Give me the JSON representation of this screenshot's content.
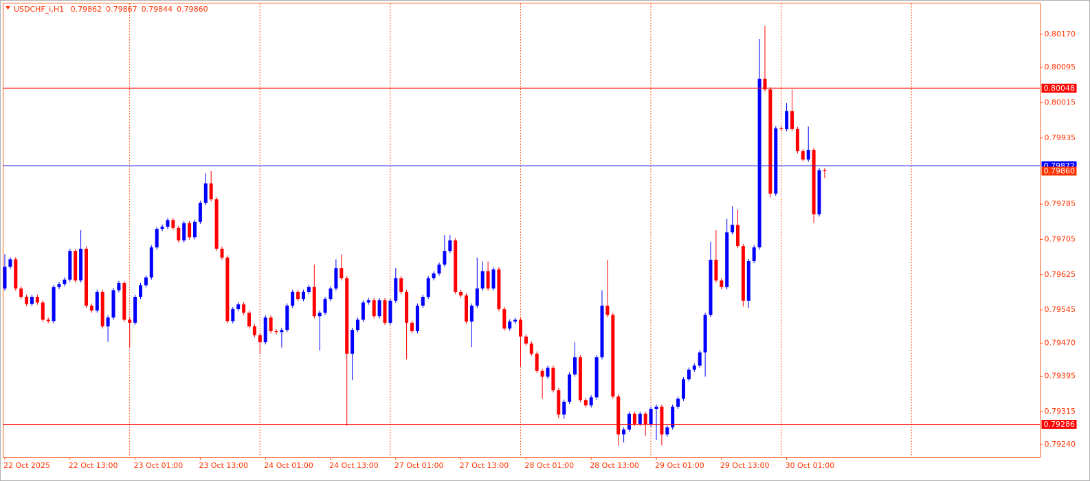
{
  "chart_data": {
    "type": "candlestick",
    "symbol": "USDCHF_i,H1",
    "header_values": [
      "0.79862",
      "0.79867",
      "0.79844",
      "0.79860"
    ],
    "up_color": "#0000ff",
    "down_color": "#ff0000",
    "categories": [
      "22 Oct 2025",
      null,
      null,
      null,
      null,
      null,
      null,
      null,
      null,
      null,
      null,
      null,
      "22 Oct 13:00",
      null,
      null,
      null,
      null,
      null,
      null,
      null,
      null,
      null,
      null,
      null,
      "23 Oct 01:00",
      null,
      null,
      null,
      null,
      null,
      null,
      null,
      null,
      null,
      null,
      null,
      "23 Oct 13:00",
      null,
      null,
      null,
      null,
      null,
      null,
      null,
      null,
      null,
      null,
      null,
      "24 Oct 01:00",
      null,
      null,
      null,
      null,
      null,
      null,
      null,
      null,
      null,
      null,
      null,
      "24 Oct 13:00",
      null,
      null,
      null,
      null,
      null,
      null,
      null,
      null,
      null,
      null,
      null,
      "27 Oct 01:00",
      null,
      null,
      null,
      null,
      null,
      null,
      null,
      null,
      null,
      null,
      null,
      "27 Oct 13:00",
      null,
      null,
      null,
      null,
      null,
      null,
      null,
      null,
      null,
      null,
      null,
      "28 Oct 01:00",
      null,
      null,
      null,
      null,
      null,
      null,
      null,
      null,
      null,
      null,
      null,
      "28 Oct 13:00",
      null,
      null,
      null,
      null,
      null,
      null,
      null,
      null,
      null,
      null,
      null,
      "29 Oct 01:00",
      null,
      null,
      null,
      null,
      null,
      null,
      null,
      null,
      null,
      null,
      null,
      "29 Oct 13:00",
      null,
      null,
      null,
      null,
      null,
      null,
      null,
      null,
      null,
      null,
      null,
      "30 Oct 01:00",
      null,
      null,
      null,
      null,
      null,
      null,
      null
    ],
    "open": [
      0.79594,
      0.79643,
      0.7966,
      0.79594,
      0.79575,
      0.79559,
      0.79575,
      0.79562,
      0.79523,
      0.7952,
      0.79597,
      0.79604,
      0.79614,
      0.79679,
      0.79612,
      0.79684,
      0.79555,
      0.79544,
      0.79586,
      0.79508,
      0.79528,
      0.7959,
      0.79606,
      0.79523,
      0.79516,
      0.79575,
      0.79601,
      0.79619,
      0.79687,
      0.79729,
      0.79734,
      0.79749,
      0.79731,
      0.79703,
      0.79742,
      0.7971,
      0.79745,
      0.79788,
      0.79832,
      0.79796,
      0.79684,
      0.79664,
      0.7952,
      0.79547,
      0.79558,
      0.79539,
      0.79508,
      0.79488,
      0.79472,
      0.79528,
      0.79497,
      0.79495,
      0.795,
      0.79555,
      0.79586,
      0.7957,
      0.79586,
      0.79597,
      0.79531,
      0.79539,
      0.7957,
      0.79594,
      0.7964,
      0.79617,
      0.79446,
      0.795,
      0.79523,
      0.79562,
      0.79567,
      0.79531,
      0.79567,
      0.79516,
      0.79566,
      0.79617,
      0.79586,
      0.79516,
      0.79497,
      0.79555,
      0.79575,
      0.79617,
      0.79628,
      0.79648,
      0.79679,
      0.79703,
      0.79586,
      0.79578,
      0.79519,
      0.79555,
      0.79594,
      0.79633,
      0.79594,
      0.79637,
      0.79547,
      0.79503,
      0.79519,
      0.79523,
      0.79485,
      0.79469,
      0.79446,
      0.79407,
      0.79394,
      0.79414,
      0.79363,
      0.79308,
      0.79337,
      0.79399,
      0.79438,
      0.79341,
      0.79329,
      0.79347,
      0.79438,
      0.79555,
      0.79534,
      0.79349,
      0.79263,
      0.79274,
      0.7931,
      0.79287,
      0.7931,
      0.79285,
      0.79321,
      0.79326,
      0.79263,
      0.79279,
      0.79326,
      0.79344,
      0.79388,
      0.7941,
      0.79419,
      0.79449,
      0.79534,
      0.79659,
      0.79612,
      0.79597,
      0.79721,
      0.79738,
      0.7969,
      0.79566,
      0.79656,
      0.79687,
      0.80069,
      0.80045,
      0.79809,
      0.79957,
      0.79955,
      0.79996,
      0.79955,
      0.79905,
      0.79886,
      0.79908,
      0.79762,
      0.79862
    ],
    "high": [
      0.79671,
      0.79665,
      0.79665,
      0.79599,
      0.7958,
      0.7958,
      0.7958,
      0.79567,
      0.79528,
      0.79602,
      0.79609,
      0.79619,
      0.79684,
      0.79684,
      0.79726,
      0.79689,
      0.7956,
      0.79591,
      0.79591,
      0.79533,
      0.79595,
      0.79611,
      0.79611,
      0.79528,
      0.7958,
      0.79606,
      0.79624,
      0.79692,
      0.79734,
      0.79739,
      0.79754,
      0.79754,
      0.79736,
      0.79747,
      0.79747,
      0.7975,
      0.79793,
      0.79855,
      0.7986,
      0.79801,
      0.79689,
      0.79669,
      0.79552,
      0.79563,
      0.79563,
      0.79544,
      0.79513,
      0.79493,
      0.79533,
      0.79533,
      0.79502,
      0.79505,
      0.7956,
      0.79591,
      0.79591,
      0.79591,
      0.79602,
      0.79648,
      0.79544,
      0.79575,
      0.79599,
      0.7966,
      0.79671,
      0.79622,
      0.79505,
      0.79528,
      0.79567,
      0.79572,
      0.79572,
      0.79572,
      0.79572,
      0.79571,
      0.7964,
      0.79622,
      0.79591,
      0.79521,
      0.7956,
      0.7958,
      0.79622,
      0.79633,
      0.79653,
      0.79715,
      0.79715,
      0.79708,
      0.79591,
      0.79583,
      0.7956,
      0.79664,
      0.79655,
      0.79655,
      0.79642,
      0.79642,
      0.79552,
      0.79524,
      0.79528,
      0.79528,
      0.7949,
      0.79474,
      0.79451,
      0.79412,
      0.79419,
      0.79419,
      0.79368,
      0.79342,
      0.79404,
      0.79472,
      0.79443,
      0.79346,
      0.79352,
      0.79443,
      0.7959,
      0.79659,
      0.79539,
      0.79354,
      0.79279,
      0.79315,
      0.79315,
      0.79315,
      0.79315,
      0.79326,
      0.79331,
      0.79331,
      0.79284,
      0.79331,
      0.79349,
      0.79393,
      0.79415,
      0.79424,
      0.79454,
      0.79539,
      0.797,
      0.79726,
      0.79617,
      0.79752,
      0.7978,
      0.79773,
      0.79695,
      0.79661,
      0.79692,
      0.80159,
      0.80189,
      0.8005,
      0.79962,
      0.79962,
      0.80014,
      0.80045,
      0.7996,
      0.7991,
      0.79961,
      0.79913,
      0.79867,
      0.79867
    ],
    "low": [
      0.79589,
      0.79638,
      0.79589,
      0.7957,
      0.79554,
      0.79554,
      0.79557,
      0.79518,
      0.79515,
      0.79515,
      0.79592,
      0.79599,
      0.79609,
      0.79607,
      0.79607,
      0.7955,
      0.79539,
      0.79539,
      0.79503,
      0.79473,
      0.79523,
      0.79585,
      0.79518,
      0.79461,
      0.79511,
      0.7957,
      0.79596,
      0.79614,
      0.79682,
      0.79724,
      0.79729,
      0.79726,
      0.79698,
      0.79698,
      0.79705,
      0.79705,
      0.7974,
      0.79783,
      0.79791,
      0.79679,
      0.79659,
      0.79515,
      0.79515,
      0.79542,
      0.79534,
      0.79503,
      0.79483,
      0.79446,
      0.79467,
      0.79492,
      0.7949,
      0.7946,
      0.79495,
      0.7955,
      0.79565,
      0.79565,
      0.79581,
      0.79526,
      0.79453,
      0.79534,
      0.79565,
      0.79589,
      0.79612,
      0.79282,
      0.79386,
      0.79495,
      0.79518,
      0.79557,
      0.79526,
      0.79526,
      0.79511,
      0.79511,
      0.79561,
      0.79581,
      0.79433,
      0.79492,
      0.79492,
      0.7955,
      0.7957,
      0.79612,
      0.79623,
      0.79643,
      0.79674,
      0.79581,
      0.79573,
      0.79514,
      0.79461,
      0.7955,
      0.79589,
      0.79589,
      0.79589,
      0.79542,
      0.79498,
      0.79498,
      0.79514,
      0.79417,
      0.79464,
      0.79441,
      0.79402,
      0.79344,
      0.79389,
      0.79358,
      0.793,
      0.79298,
      0.79332,
      0.79394,
      0.79336,
      0.79324,
      0.79324,
      0.79342,
      0.79433,
      0.79529,
      0.79344,
      0.79238,
      0.79245,
      0.79269,
      0.79282,
      0.79282,
      0.7926,
      0.7928,
      0.79251,
      0.79238,
      0.79258,
      0.79274,
      0.79321,
      0.79339,
      0.79383,
      0.79405,
      0.79414,
      0.79394,
      0.79529,
      0.79607,
      0.79592,
      0.79592,
      0.79716,
      0.79685,
      0.79553,
      0.7955,
      0.79651,
      0.79682,
      0.8004,
      0.798,
      0.79804,
      0.7995,
      0.7995,
      0.7995,
      0.799,
      0.79881,
      0.79881,
      0.79742,
      0.79757,
      0.79844
    ],
    "close": [
      0.79643,
      0.7966,
      0.79594,
      0.79575,
      0.79559,
      0.79575,
      0.79562,
      0.79523,
      0.7952,
      0.79597,
      0.79604,
      0.79614,
      0.79679,
      0.79612,
      0.79684,
      0.79555,
      0.79544,
      0.79586,
      0.79508,
      0.79528,
      0.7959,
      0.79606,
      0.79523,
      0.79516,
      0.79575,
      0.79601,
      0.79619,
      0.79687,
      0.79729,
      0.79734,
      0.79749,
      0.79731,
      0.79703,
      0.79742,
      0.7971,
      0.79745,
      0.79788,
      0.79832,
      0.79796,
      0.79684,
      0.79664,
      0.7952,
      0.79547,
      0.79558,
      0.79539,
      0.79508,
      0.79488,
      0.79472,
      0.79528,
      0.79497,
      0.79495,
      0.795,
      0.79555,
      0.79586,
      0.7957,
      0.79586,
      0.79597,
      0.79531,
      0.79539,
      0.7957,
      0.79594,
      0.7964,
      0.79617,
      0.79446,
      0.795,
      0.79523,
      0.79562,
      0.79567,
      0.79531,
      0.79567,
      0.79516,
      0.79566,
      0.79617,
      0.79586,
      0.79516,
      0.79497,
      0.79555,
      0.79575,
      0.79617,
      0.79628,
      0.79648,
      0.79679,
      0.79703,
      0.79586,
      0.79578,
      0.79519,
      0.79555,
      0.79594,
      0.79633,
      0.79594,
      0.79637,
      0.79547,
      0.79503,
      0.79519,
      0.79523,
      0.79485,
      0.79469,
      0.79446,
      0.79407,
      0.79394,
      0.79414,
      0.79363,
      0.79308,
      0.79337,
      0.79399,
      0.79438,
      0.79341,
      0.79329,
      0.79347,
      0.79438,
      0.79555,
      0.79534,
      0.79349,
      0.79263,
      0.79274,
      0.7931,
      0.79287,
      0.7931,
      0.79285,
      0.79321,
      0.79326,
      0.79263,
      0.79279,
      0.79326,
      0.79344,
      0.79388,
      0.7941,
      0.79419,
      0.79449,
      0.79534,
      0.79659,
      0.79612,
      0.79597,
      0.79721,
      0.79738,
      0.7969,
      0.79566,
      0.79656,
      0.79687,
      0.80069,
      0.80045,
      0.79809,
      0.79957,
      0.79955,
      0.79996,
      0.79955,
      0.79905,
      0.79886,
      0.79908,
      0.79762,
      0.79862,
      0.7986
    ],
    "ylim": [
      0.79212,
      0.8024
    ],
    "yticks": [
      {
        "value": 0.8017,
        "label": "0.80170"
      },
      0.80095,
      0.80015,
      0.79935,
      0.79785,
      0.79705,
      0.79625,
      0.79545,
      {
        "value": 0.7947,
        "label": "0.79470"
      },
      0.79395,
      0.79315,
      {
        "value": 0.7924,
        "label": "0.79240"
      }
    ],
    "hlines": [
      {
        "value": 0.80048,
        "color": "#ff0000"
      },
      {
        "value": 0.79286,
        "color": "#ff0000"
      },
      {
        "value": 0.79872,
        "color": "#0000ff"
      }
    ],
    "price_marker": {
      "value": 0.7986,
      "label": "0.79860",
      "color": "#ff3300"
    },
    "grid": true
  }
}
